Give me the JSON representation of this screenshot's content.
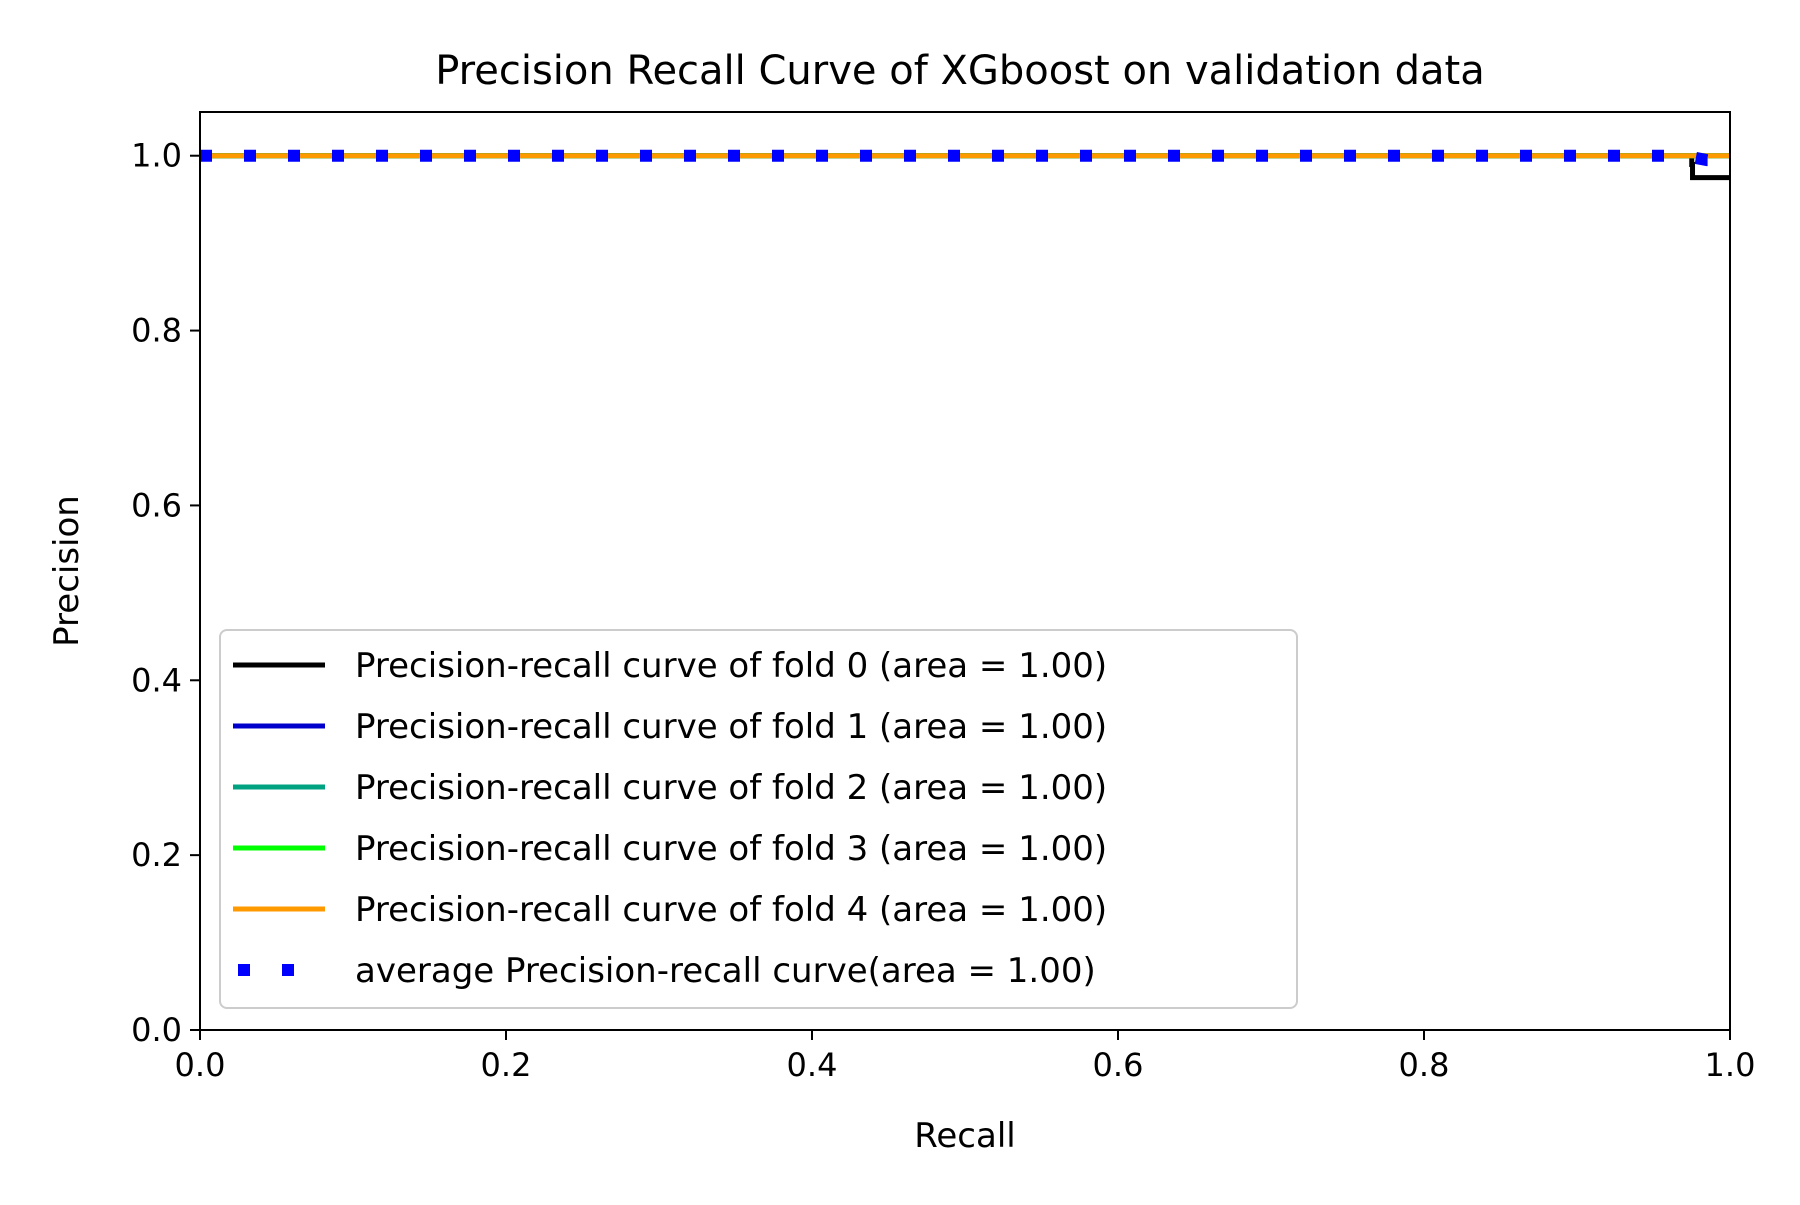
{
  "chart_data": {
    "type": "line",
    "title": "Precision Recall Curve of XGboost on validation data",
    "xlabel": "Recall",
    "ylabel": "Precision",
    "xlim": [
      0.0,
      1.0
    ],
    "ylim": [
      0.0,
      1.05
    ],
    "xticks": [
      0.0,
      0.2,
      0.4,
      0.6,
      0.8,
      1.0
    ],
    "xtick_labels": [
      "0.0",
      "0.2",
      "0.4",
      "0.6",
      "0.8",
      "1.0"
    ],
    "yticks": [
      0.0,
      0.2,
      0.4,
      0.6,
      0.8,
      1.0
    ],
    "ytick_labels": [
      "0.0",
      "0.2",
      "0.4",
      "0.6",
      "0.8",
      "1.0"
    ],
    "grid": false,
    "legend_position": "lower-left",
    "series": [
      {
        "name": "Precision-recall curve of fold 0 (area = 1.00)",
        "color": "#000000",
        "style": "solid",
        "x": [
          0.0,
          0.975,
          0.975,
          0.9755,
          0.9755,
          1.0,
          1.0
        ],
        "y": [
          1.0,
          1.0,
          0.99,
          0.99,
          0.975,
          0.975,
          0.975
        ]
      },
      {
        "name": "Precision-recall curve of fold 1 (area = 1.00)",
        "color": "#0000cc",
        "style": "solid",
        "x": [
          0.0,
          1.0
        ],
        "y": [
          1.0,
          1.0
        ]
      },
      {
        "name": "Precision-recall curve of fold 2 (area = 1.00)",
        "color": "#00a381",
        "style": "solid",
        "x": [
          0.0,
          1.0
        ],
        "y": [
          1.0,
          1.0
        ]
      },
      {
        "name": "Precision-recall curve of fold 3 (area = 1.00)",
        "color": "#00ff00",
        "style": "solid",
        "x": [
          0.0,
          1.0
        ],
        "y": [
          1.0,
          1.0
        ]
      },
      {
        "name": "Precision-recall curve of fold 4 (area = 1.00)",
        "color": "#ff9900",
        "style": "solid",
        "x": [
          0.0,
          1.0
        ],
        "y": [
          1.0,
          1.0
        ]
      },
      {
        "name": "average Precision-recall curve(area = 1.00)",
        "color": "#0000ff",
        "style": "dotted",
        "x": [
          0.0,
          0.97,
          0.985,
          1.0
        ],
        "y": [
          1.0,
          1.0,
          0.995,
          0.995
        ]
      }
    ]
  }
}
